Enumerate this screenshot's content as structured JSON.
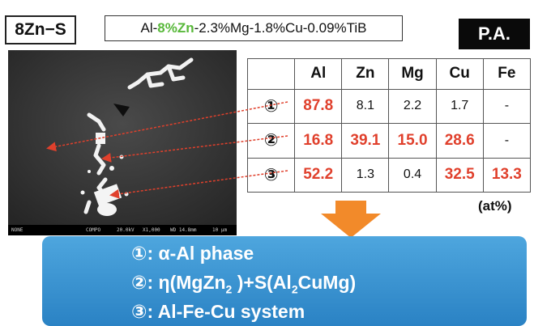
{
  "header": {
    "sample_tag": "8Zn−S",
    "composition": {
      "prefix": "Al-",
      "highlight": "8%Zn",
      "suffix": "-2.3%Mg-1.8%Cu-0.09%TiB"
    },
    "badge": "P.A."
  },
  "sem_image": {
    "footer": {
      "left": "NONE",
      "mode": "COMPO",
      "voltage": "20.0kV",
      "magnification": "X1,000",
      "working_distance": "WD 14.8mm",
      "scale": "10 μm"
    }
  },
  "table": {
    "columns": [
      "",
      "Al",
      "Zn",
      "Mg",
      "Cu",
      "Fe"
    ],
    "rows": [
      {
        "label": "①",
        "cells": [
          "87.8",
          "8.1",
          "2.2",
          "1.7",
          "-"
        ],
        "red": [
          true,
          false,
          false,
          false,
          false
        ]
      },
      {
        "label": "②",
        "cells": [
          "16.8",
          "39.1",
          "15.0",
          "28.6",
          "-"
        ],
        "red": [
          true,
          true,
          true,
          true,
          false
        ]
      },
      {
        "label": "③",
        "cells": [
          "52.2",
          "1.3",
          "0.4",
          "32.5",
          "13.3"
        ],
        "red": [
          true,
          false,
          false,
          true,
          true
        ]
      }
    ],
    "unit": "(at%)"
  },
  "summary": {
    "line1": "①: α-Al   phase",
    "line2": {
      "a": "②: η(MgZn",
      "s1": "2",
      "b": " )+S(Al",
      "s2": "2",
      "c": "CuMg)"
    },
    "line3": "③: Al-Fe-Cu system"
  },
  "colors": {
    "highlight_green": "#58b83a",
    "value_red": "#e0402c",
    "arrow_orange": "#f28a2a",
    "box_blue": "#3a94d4",
    "pointer_red": "#e0402c"
  }
}
